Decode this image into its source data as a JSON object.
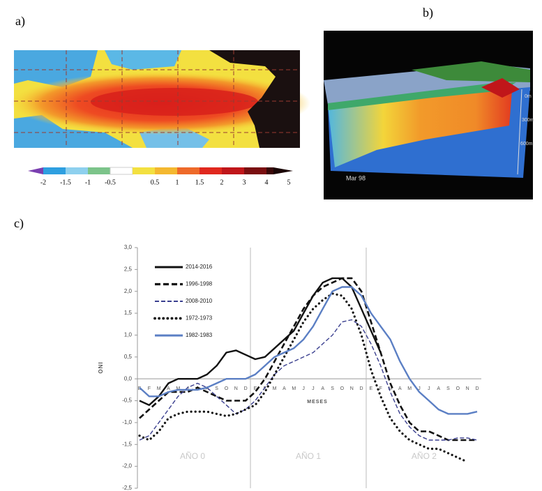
{
  "labels": {
    "a": "a)",
    "b": "b)",
    "c": "c)"
  },
  "panel_a": {
    "colorbar_labels": [
      "-2",
      "-1.5",
      "-1",
      "-0.5",
      "0.5",
      "1",
      "1.5",
      "2",
      "3",
      "4",
      "5"
    ]
  },
  "panel_b": {
    "date": "Mar 98",
    "depths": [
      "0m",
      "300m",
      "600m"
    ]
  },
  "chart_data": {
    "type": "line",
    "ylabel": "ONI",
    "xlabel": "MESES",
    "categories": [
      "E",
      "F",
      "M",
      "A",
      "M",
      "J",
      "J",
      "A",
      "S",
      "O",
      "N",
      "D",
      "E",
      "F",
      "M",
      "A",
      "M",
      "J",
      "J",
      "A",
      "S",
      "O",
      "N",
      "D",
      "E",
      "F",
      "M",
      "A",
      "M",
      "J",
      "J",
      "A",
      "S",
      "O",
      "N",
      "D"
    ],
    "annotations": [
      "AÑO 0",
      "AÑO 1",
      "AÑO 2"
    ],
    "ylim": [
      -2.5,
      3
    ],
    "yticks": [
      {
        "value": 3,
        "label": "3,0"
      },
      {
        "value": 2.5,
        "label": "2,5"
      },
      {
        "value": 2,
        "label": "2,0"
      },
      {
        "value": 1.5,
        "label": "1,5"
      },
      {
        "value": 1,
        "label": "1,0"
      },
      {
        "value": 0.5,
        "label": "0,5"
      },
      {
        "value": 0,
        "label": "0,0"
      },
      {
        "value": -0.5,
        "label": "-0,5"
      },
      {
        "value": -1,
        "label": "-1,0"
      },
      {
        "value": -1.5,
        "label": "-1,5"
      },
      {
        "value": -2,
        "label": "-2,0"
      },
      {
        "value": -2.5,
        "label": "-2,5"
      }
    ],
    "series": [
      {
        "name": "2014-2016",
        "color": "#111111",
        "style": "solid",
        "values": [
          -0.5,
          -0.6,
          -0.4,
          -0.1,
          0.0,
          0.0,
          0.0,
          0.1,
          0.3,
          0.6,
          0.65,
          0.55,
          0.45,
          0.5,
          0.7,
          0.9,
          1.1,
          1.5,
          1.9,
          2.2,
          2.3,
          2.3,
          2.1,
          1.6,
          1.1,
          0.6,
          null,
          null,
          null,
          null,
          null,
          null,
          null,
          null,
          null,
          null
        ]
      },
      {
        "name": "1996-1998",
        "color": "#111111",
        "style": "dashed",
        "values": [
          -0.9,
          -0.7,
          -0.5,
          -0.3,
          -0.3,
          -0.3,
          -0.2,
          -0.3,
          -0.4,
          -0.5,
          -0.5,
          -0.5,
          -0.3,
          0.0,
          0.4,
          0.8,
          1.2,
          1.6,
          1.9,
          2.1,
          2.2,
          2.3,
          2.3,
          2.0,
          1.3,
          0.6,
          -0.1,
          -0.6,
          -1.0,
          -1.2,
          -1.2,
          -1.3,
          -1.4,
          -1.4,
          -1.4,
          -1.4
        ]
      },
      {
        "name": "2008-2010",
        "color": "#3a3f8f",
        "style": "thin-dashed",
        "values": [
          -1.4,
          -1.3,
          -1.0,
          -0.7,
          -0.4,
          -0.2,
          -0.1,
          -0.2,
          -0.4,
          -0.6,
          -0.8,
          -0.7,
          -0.5,
          -0.2,
          0.1,
          0.3,
          0.4,
          0.5,
          0.6,
          0.8,
          1.0,
          1.3,
          1.35,
          1.2,
          0.8,
          0.3,
          -0.3,
          -0.8,
          -1.1,
          -1.3,
          -1.4,
          -1.4,
          -1.4,
          -1.35,
          -1.35,
          -1.4
        ]
      },
      {
        "name": "1972-1973",
        "color": "#111111",
        "style": "dotted",
        "values": [
          -1.3,
          -1.4,
          -1.2,
          -0.9,
          -0.8,
          -0.75,
          -0.75,
          -0.75,
          -0.8,
          -0.85,
          -0.8,
          -0.7,
          -0.6,
          -0.3,
          0.1,
          0.5,
          0.9,
          1.3,
          1.6,
          1.8,
          1.95,
          1.9,
          1.6,
          1.0,
          0.2,
          -0.4,
          -0.9,
          -1.2,
          -1.4,
          -1.5,
          -1.6,
          -1.6,
          -1.7,
          -1.8,
          -1.9,
          null
        ]
      },
      {
        "name": "1982-1983",
        "color": "#5b7fc4",
        "style": "solid",
        "values": [
          -0.2,
          -0.4,
          -0.4,
          -0.3,
          -0.25,
          -0.25,
          -0.25,
          -0.2,
          -0.1,
          0.0,
          0.0,
          0.0,
          0.1,
          0.3,
          0.5,
          0.6,
          0.7,
          0.9,
          1.2,
          1.6,
          2.0,
          2.1,
          2.1,
          1.9,
          1.5,
          1.2,
          0.9,
          0.4,
          0.0,
          -0.3,
          -0.5,
          -0.7,
          -0.8,
          -0.8,
          -0.8,
          -0.75
        ]
      }
    ]
  }
}
